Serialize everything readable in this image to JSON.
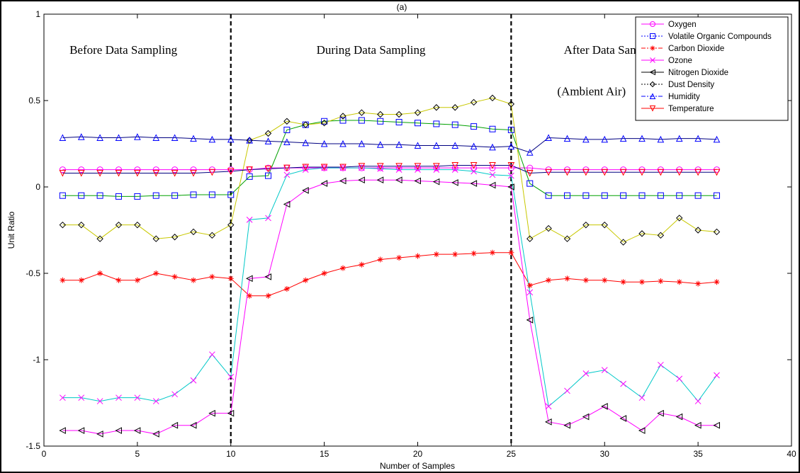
{
  "chart_data": {
    "type": "line",
    "title": "(a)",
    "xlabel": "Number of Samples",
    "ylabel": "Unit Ratio",
    "xlim": [
      0,
      40
    ],
    "ylim": [
      -1.5,
      1
    ],
    "xticks": [
      0,
      5,
      10,
      15,
      20,
      25,
      30,
      35,
      40
    ],
    "yticks": [
      1,
      0.5,
      0,
      -0.5,
      -1,
      -1.5
    ],
    "xtick_labels": [
      "0",
      "5",
      "10",
      "15",
      "20",
      "25",
      "30",
      "35",
      "40"
    ],
    "ytick_labels": [
      "1",
      "0.5",
      "0",
      "-0.5",
      "-1",
      "-1.5"
    ],
    "grid": false,
    "legend_position": "top-right",
    "vlines": [
      10,
      25
    ],
    "annotations": [
      {
        "text": "Before Data Sampling",
        "x": 4.25,
        "y": 0.77
      },
      {
        "text": "During Data Sampling",
        "x": 17.5,
        "y": 0.77
      },
      {
        "text": "After Data Sampling",
        "x": 30.5,
        "y": 0.77
      },
      {
        "text": "(Ambient Air)",
        "x": 29.3,
        "y": 0.53
      }
    ],
    "x": [
      1,
      2,
      3,
      4,
      5,
      6,
      7,
      8,
      9,
      10,
      11,
      12,
      13,
      14,
      15,
      16,
      17,
      18,
      19,
      20,
      21,
      22,
      23,
      24,
      25,
      26,
      27,
      28,
      29,
      30,
      31,
      32,
      33,
      34,
      35,
      36
    ],
    "series": [
      {
        "name": "Oxygen",
        "color": "#ff00ff",
        "marker": "circle",
        "dash": "solid",
        "legend_line": "solid",
        "values": [
          0.1,
          0.1,
          0.1,
          0.1,
          0.1,
          0.1,
          0.1,
          0.1,
          0.1,
          0.1,
          0.1,
          0.11,
          0.11,
          0.11,
          0.11,
          0.11,
          0.11,
          0.11,
          0.11,
          0.11,
          0.11,
          0.11,
          0.11,
          0.11,
          0.11,
          0.11,
          0.1,
          0.1,
          0.1,
          0.1,
          0.1,
          0.1,
          0.1,
          0.1,
          0.1,
          0.1
        ]
      },
      {
        "name": "Volatile Organic Compounds",
        "color": "#0000ff",
        "marker": "square",
        "dash": "solid",
        "legend_line": "dotted",
        "line_color": "#00a000",
        "values": [
          -0.05,
          -0.05,
          -0.05,
          -0.055,
          -0.055,
          -0.05,
          -0.05,
          -0.045,
          -0.045,
          -0.045,
          0.06,
          0.065,
          0.33,
          0.36,
          0.38,
          0.385,
          0.385,
          0.38,
          0.375,
          0.37,
          0.365,
          0.36,
          0.35,
          0.335,
          0.33,
          0.02,
          -0.05,
          -0.05,
          -0.05,
          -0.05,
          -0.05,
          -0.05,
          -0.05,
          -0.05,
          -0.05,
          -0.05
        ]
      },
      {
        "name": "Carbon Dioxide",
        "color": "#ff0000",
        "marker": "asterisk",
        "dash": "solid",
        "legend_line": "dashdot",
        "values": [
          -0.54,
          -0.54,
          -0.5,
          -0.54,
          -0.54,
          -0.5,
          -0.52,
          -0.54,
          -0.52,
          -0.53,
          -0.63,
          -0.63,
          -0.59,
          -0.54,
          -0.5,
          -0.47,
          -0.45,
          -0.42,
          -0.41,
          -0.4,
          -0.39,
          -0.39,
          -0.385,
          -0.38,
          -0.38,
          -0.57,
          -0.54,
          -0.53,
          -0.54,
          -0.54,
          -0.55,
          -0.55,
          -0.545,
          -0.55,
          -0.56,
          -0.55
        ]
      },
      {
        "name": "Ozone",
        "color": "#ff00ff",
        "marker": "x",
        "dash": "solid",
        "legend_line": "solid",
        "line_color": "#00c8c8",
        "values": [
          -1.22,
          -1.22,
          -1.24,
          -1.22,
          -1.22,
          -1.24,
          -1.2,
          -1.12,
          -0.97,
          -1.1,
          -0.19,
          -0.18,
          0.07,
          0.1,
          0.11,
          0.11,
          0.11,
          0.105,
          0.1,
          0.1,
          0.1,
          0.1,
          0.09,
          0.07,
          0.065,
          -0.61,
          -1.27,
          -1.18,
          -1.08,
          -1.06,
          -1.14,
          -1.22,
          -1.03,
          -1.11,
          -1.24,
          -1.09
        ]
      },
      {
        "name": "Nitrogen Dioxide",
        "color": "#000000",
        "marker": "triangle-left",
        "dash": "solid",
        "legend_line": "solid",
        "line_color": "#ff00ff",
        "values": [
          -1.41,
          -1.41,
          -1.43,
          -1.41,
          -1.41,
          -1.43,
          -1.38,
          -1.38,
          -1.31,
          -1.31,
          -0.53,
          -0.52,
          -0.1,
          -0.02,
          0.02,
          0.035,
          0.04,
          0.04,
          0.04,
          0.035,
          0.03,
          0.025,
          0.02,
          0.01,
          0.0,
          -0.77,
          -1.36,
          -1.38,
          -1.33,
          -1.27,
          -1.34,
          -1.41,
          -1.31,
          -1.33,
          -1.38,
          -1.38
        ]
      },
      {
        "name": "Dust Density",
        "color": "#000000",
        "marker": "diamond",
        "dash": "solid",
        "legend_line": "dotted",
        "line_color": "#c8c800",
        "values": [
          -0.22,
          -0.22,
          -0.3,
          -0.22,
          -0.22,
          -0.3,
          -0.29,
          -0.26,
          -0.28,
          -0.22,
          0.27,
          0.31,
          0.38,
          0.36,
          0.37,
          0.41,
          0.43,
          0.42,
          0.42,
          0.43,
          0.46,
          0.46,
          0.49,
          0.515,
          0.48,
          -0.3,
          -0.24,
          -0.3,
          -0.22,
          -0.22,
          -0.32,
          -0.27,
          -0.28,
          -0.18,
          -0.25,
          -0.26
        ]
      },
      {
        "name": "Humidity",
        "color": "#0000ff",
        "marker": "triangle-up",
        "dash": "solid",
        "legend_line": "dashdot",
        "line_color": "#000080",
        "values": [
          0.285,
          0.29,
          0.285,
          0.285,
          0.29,
          0.285,
          0.285,
          0.28,
          0.275,
          0.275,
          0.27,
          0.265,
          0.26,
          0.255,
          0.25,
          0.25,
          0.25,
          0.245,
          0.245,
          0.24,
          0.24,
          0.24,
          0.235,
          0.23,
          0.235,
          0.2,
          0.285,
          0.28,
          0.275,
          0.275,
          0.28,
          0.28,
          0.275,
          0.28,
          0.28,
          0.275
        ]
      },
      {
        "name": "Temperature",
        "color": "#ff0000",
        "marker": "triangle-down",
        "dash": "solid",
        "legend_line": "solid",
        "line_color": "#000080",
        "values": [
          0.08,
          0.08,
          0.08,
          0.08,
          0.08,
          0.08,
          0.08,
          0.08,
          0.085,
          0.09,
          0.1,
          0.105,
          0.11,
          0.115,
          0.115,
          0.115,
          0.12,
          0.12,
          0.12,
          0.12,
          0.12,
          0.125,
          0.125,
          0.125,
          0.125,
          0.08,
          0.085,
          0.085,
          0.085,
          0.085,
          0.085,
          0.085,
          0.085,
          0.085,
          0.085,
          0.085
        ]
      }
    ]
  }
}
